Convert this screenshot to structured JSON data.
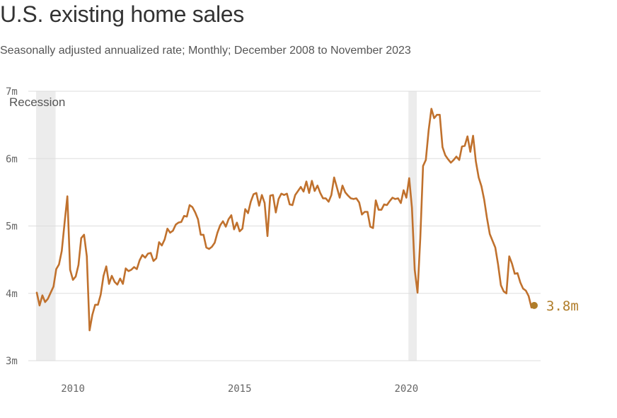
{
  "header": {
    "title": "U.S. existing home sales",
    "subtitle": "Seasonally adjusted annualized rate; Monthly; December 2008 to November 2023"
  },
  "colors": {
    "line": "#c0712d",
    "recession": "#ececec",
    "grid": "#dddddd",
    "last_point": "#b07d2a"
  },
  "chart_data": {
    "type": "line",
    "title": "U.S. existing home sales",
    "subtitle": "Seasonally adjusted annualized rate; Monthly; December 2008 to November 2023",
    "xlabel": "",
    "ylabel": "",
    "xlim": [
      "2008-12",
      "2023-11"
    ],
    "ylim": [
      3,
      7
    ],
    "y_ticks": [
      3,
      4,
      5,
      6,
      7
    ],
    "y_tick_labels": [
      "3m",
      "4m",
      "5m",
      "6m",
      "7m"
    ],
    "x_ticks": [
      "2010-01",
      "2015-01",
      "2020-01"
    ],
    "x_tick_labels": [
      "2010",
      "2015",
      "2020"
    ],
    "grid": true,
    "recession_label": "Recession",
    "recessions": [
      {
        "start": "2008-12",
        "end": "2009-06"
      },
      {
        "start": "2020-02",
        "end": "2020-04"
      }
    ],
    "last_value_label": "3.8m",
    "series": [
      {
        "values": [
          [
            "2008-12",
            4.01
          ],
          [
            "2009-01",
            3.82
          ],
          [
            "2009-02",
            3.97
          ],
          [
            "2009-03",
            3.87
          ],
          [
            "2009-04",
            3.92
          ],
          [
            "2009-05",
            4.01
          ],
          [
            "2009-06",
            4.1
          ],
          [
            "2009-07",
            4.36
          ],
          [
            "2009-08",
            4.43
          ],
          [
            "2009-09",
            4.63
          ],
          [
            "2009-10",
            5.05
          ],
          [
            "2009-11",
            5.44
          ],
          [
            "2009-12",
            4.35
          ],
          [
            "2010-01",
            4.2
          ],
          [
            "2010-02",
            4.25
          ],
          [
            "2010-03",
            4.42
          ],
          [
            "2010-04",
            4.82
          ],
          [
            "2010-05",
            4.87
          ],
          [
            "2010-06",
            4.55
          ],
          [
            "2010-07",
            3.45
          ],
          [
            "2010-08",
            3.68
          ],
          [
            "2010-09",
            3.83
          ],
          [
            "2010-10",
            3.83
          ],
          [
            "2010-11",
            3.98
          ],
          [
            "2010-12",
            4.26
          ],
          [
            "2011-01",
            4.4
          ],
          [
            "2011-02",
            4.14
          ],
          [
            "2011-03",
            4.26
          ],
          [
            "2011-04",
            4.17
          ],
          [
            "2011-05",
            4.13
          ],
          [
            "2011-06",
            4.22
          ],
          [
            "2011-07",
            4.14
          ],
          [
            "2011-08",
            4.37
          ],
          [
            "2011-09",
            4.33
          ],
          [
            "2011-10",
            4.35
          ],
          [
            "2011-11",
            4.39
          ],
          [
            "2011-12",
            4.36
          ],
          [
            "2012-01",
            4.49
          ],
          [
            "2012-02",
            4.57
          ],
          [
            "2012-03",
            4.53
          ],
          [
            "2012-04",
            4.59
          ],
          [
            "2012-05",
            4.6
          ],
          [
            "2012-06",
            4.48
          ],
          [
            "2012-07",
            4.52
          ],
          [
            "2012-08",
            4.76
          ],
          [
            "2012-09",
            4.71
          ],
          [
            "2012-10",
            4.8
          ],
          [
            "2012-11",
            4.96
          ],
          [
            "2012-12",
            4.9
          ],
          [
            "2013-01",
            4.93
          ],
          [
            "2013-02",
            5.02
          ],
          [
            "2013-03",
            5.05
          ],
          [
            "2013-04",
            5.06
          ],
          [
            "2013-05",
            5.15
          ],
          [
            "2013-06",
            5.14
          ],
          [
            "2013-07",
            5.31
          ],
          [
            "2013-08",
            5.28
          ],
          [
            "2013-09",
            5.2
          ],
          [
            "2013-10",
            5.1
          ],
          [
            "2013-11",
            4.87
          ],
          [
            "2013-12",
            4.87
          ],
          [
            "2014-01",
            4.68
          ],
          [
            "2014-02",
            4.66
          ],
          [
            "2014-03",
            4.69
          ],
          [
            "2014-04",
            4.75
          ],
          [
            "2014-05",
            4.9
          ],
          [
            "2014-06",
            5.01
          ],
          [
            "2014-07",
            5.07
          ],
          [
            "2014-08",
            4.99
          ],
          [
            "2014-09",
            5.1
          ],
          [
            "2014-10",
            5.16
          ],
          [
            "2014-11",
            4.95
          ],
          [
            "2014-12",
            5.05
          ],
          [
            "2015-01",
            4.92
          ],
          [
            "2015-02",
            4.96
          ],
          [
            "2015-03",
            5.25
          ],
          [
            "2015-04",
            5.19
          ],
          [
            "2015-05",
            5.36
          ],
          [
            "2015-06",
            5.47
          ],
          [
            "2015-07",
            5.49
          ],
          [
            "2015-08",
            5.3
          ],
          [
            "2015-09",
            5.46
          ],
          [
            "2015-10",
            5.34
          ],
          [
            "2015-11",
            4.85
          ],
          [
            "2015-12",
            5.45
          ],
          [
            "2016-01",
            5.46
          ],
          [
            "2016-02",
            5.2
          ],
          [
            "2016-03",
            5.4
          ],
          [
            "2016-04",
            5.48
          ],
          [
            "2016-05",
            5.46
          ],
          [
            "2016-06",
            5.48
          ],
          [
            "2016-07",
            5.32
          ],
          [
            "2016-08",
            5.31
          ],
          [
            "2016-09",
            5.46
          ],
          [
            "2016-10",
            5.52
          ],
          [
            "2016-11",
            5.58
          ],
          [
            "2016-12",
            5.51
          ],
          [
            "2017-01",
            5.66
          ],
          [
            "2017-02",
            5.49
          ],
          [
            "2017-03",
            5.67
          ],
          [
            "2017-04",
            5.52
          ],
          [
            "2017-05",
            5.6
          ],
          [
            "2017-06",
            5.49
          ],
          [
            "2017-07",
            5.41
          ],
          [
            "2017-08",
            5.41
          ],
          [
            "2017-09",
            5.36
          ],
          [
            "2017-10",
            5.46
          ],
          [
            "2017-11",
            5.72
          ],
          [
            "2017-12",
            5.57
          ],
          [
            "2018-01",
            5.42
          ],
          [
            "2018-02",
            5.6
          ],
          [
            "2018-03",
            5.5
          ],
          [
            "2018-04",
            5.45
          ],
          [
            "2018-05",
            5.41
          ],
          [
            "2018-06",
            5.4
          ],
          [
            "2018-07",
            5.41
          ],
          [
            "2018-08",
            5.35
          ],
          [
            "2018-09",
            5.17
          ],
          [
            "2018-10",
            5.21
          ],
          [
            "2018-11",
            5.21
          ],
          [
            "2018-12",
            4.99
          ],
          [
            "2019-01",
            4.97
          ],
          [
            "2019-02",
            5.38
          ],
          [
            "2019-03",
            5.24
          ],
          [
            "2019-04",
            5.24
          ],
          [
            "2019-05",
            5.32
          ],
          [
            "2019-06",
            5.31
          ],
          [
            "2019-07",
            5.37
          ],
          [
            "2019-08",
            5.42
          ],
          [
            "2019-09",
            5.4
          ],
          [
            "2019-10",
            5.41
          ],
          [
            "2019-11",
            5.34
          ],
          [
            "2019-12",
            5.53
          ],
          [
            "2020-01",
            5.42
          ],
          [
            "2020-02",
            5.71
          ],
          [
            "2020-03",
            5.27
          ],
          [
            "2020-04",
            4.35
          ],
          [
            "2020-05",
            4.01
          ],
          [
            "2020-06",
            4.82
          ],
          [
            "2020-07",
            5.89
          ],
          [
            "2020-08",
            5.98
          ],
          [
            "2020-09",
            6.42
          ],
          [
            "2020-10",
            6.74
          ],
          [
            "2020-11",
            6.6
          ],
          [
            "2020-12",
            6.65
          ],
          [
            "2021-01",
            6.65
          ],
          [
            "2021-02",
            6.17
          ],
          [
            "2021-03",
            6.05
          ],
          [
            "2021-04",
            5.99
          ],
          [
            "2021-05",
            5.94
          ],
          [
            "2021-06",
            5.98
          ],
          [
            "2021-07",
            6.03
          ],
          [
            "2021-08",
            5.98
          ],
          [
            "2021-09",
            6.18
          ],
          [
            "2021-10",
            6.19
          ],
          [
            "2021-11",
            6.33
          ],
          [
            "2021-12",
            6.1
          ],
          [
            "2022-01",
            6.34
          ],
          [
            "2022-02",
            5.96
          ],
          [
            "2022-03",
            5.72
          ],
          [
            "2022-04",
            5.59
          ],
          [
            "2022-05",
            5.39
          ],
          [
            "2022-06",
            5.12
          ],
          [
            "2022-07",
            4.88
          ],
          [
            "2022-08",
            4.78
          ],
          [
            "2022-09",
            4.68
          ],
          [
            "2022-10",
            4.43
          ],
          [
            "2022-11",
            4.12
          ],
          [
            "2022-12",
            4.03
          ],
          [
            "2023-01",
            4.0
          ],
          [
            "2023-02",
            4.55
          ],
          [
            "2023-03",
            4.44
          ],
          [
            "2023-04",
            4.29
          ],
          [
            "2023-05",
            4.3
          ],
          [
            "2023-06",
            4.16
          ],
          [
            "2023-07",
            4.07
          ],
          [
            "2023-08",
            4.04
          ],
          [
            "2023-09",
            3.96
          ],
          [
            "2023-10",
            3.79
          ],
          [
            "2023-11",
            3.82
          ]
        ]
      }
    ]
  }
}
